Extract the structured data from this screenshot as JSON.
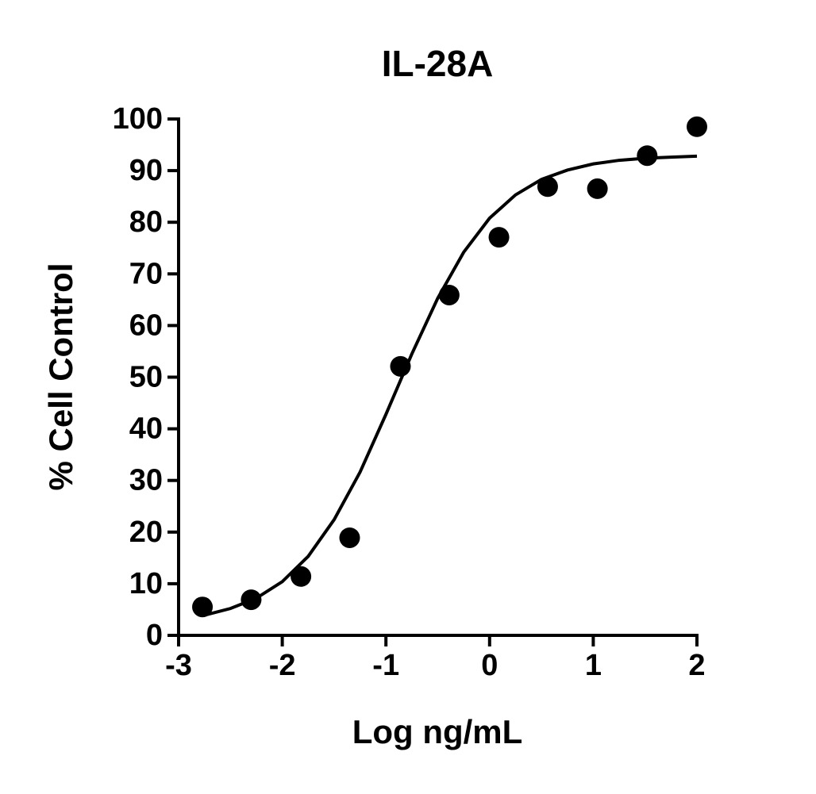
{
  "chart_data": {
    "type": "scatter",
    "title": "IL-28A",
    "x_label": "Log ng/mL",
    "y_label": "% Cell Control",
    "xlim": [
      -3,
      2
    ],
    "xticks": [
      -3,
      -2,
      -1,
      0,
      1,
      2
    ],
    "ylim": [
      0,
      100
    ],
    "yticks": [
      0,
      10,
      20,
      30,
      40,
      50,
      60,
      70,
      80,
      90,
      100
    ],
    "grid": false,
    "series": [
      {
        "mode": "markers",
        "color": "#000000",
        "x": [
          -2.77,
          -2.3,
          -1.82,
          -1.35,
          -0.86,
          -0.39,
          0.09,
          0.56,
          1.04,
          1.52,
          2.0
        ],
        "values": [
          5.5,
          6.9,
          11.4,
          18.9,
          52.1,
          65.9,
          77.1,
          86.9,
          86.5,
          92.9,
          98.5
        ]
      },
      {
        "mode": "line",
        "color": "#000000",
        "x": [
          -2.75,
          -2.5,
          -2.25,
          -2,
          -1.75,
          -1.5,
          -1.25,
          -1,
          -0.75,
          -0.5,
          -0.25,
          0,
          0.25,
          0.5,
          0.75,
          1,
          1.25,
          1.5,
          1.75,
          2
        ],
        "values": [
          3.9,
          5.2,
          7.2,
          10.4,
          15.3,
          22.4,
          31.6,
          42.8,
          54.5,
          65.3,
          74.2,
          80.8,
          85.3,
          88.3,
          90.1,
          91.3,
          92.0,
          92.4,
          92.6,
          92.8
        ]
      }
    ]
  }
}
